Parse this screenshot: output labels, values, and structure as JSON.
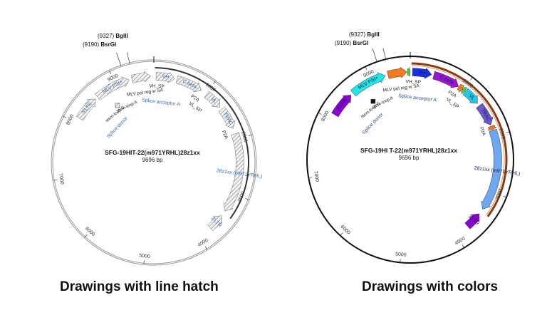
{
  "maps": [
    {
      "id": "hatch",
      "style": "line-hatch",
      "caption": "Drawings with line hatch",
      "title": "SFG-19HIT-22(m971YRHL)28z1xx",
      "size_label": "9696 bp",
      "total_bp": 9696,
      "ring_color": "#9a9a9a",
      "inner_track_color": "#333333",
      "sites": [
        {
          "pos": "(9327)",
          "name": "BglII"
        },
        {
          "pos": "(9190)",
          "name": "BsrGI"
        }
      ],
      "ticks": [
        "1000",
        "2000",
        "3000",
        "4000",
        "5000",
        "6000",
        "7000",
        "8000",
        "9000"
      ],
      "features": [
        {
          "label": "5'LTR",
          "start": 8100,
          "end": 8550
        },
        {
          "label": "MLV PSI+",
          "start": 8600,
          "end": 9250
        },
        {
          "label": "",
          "start": 9300,
          "end": 9640
        },
        {
          "label": "VH",
          "start": 40,
          "end": 380
        },
        {
          "label": "C beta",
          "start": 420,
          "end": 900
        },
        {
          "label": "VL",
          "start": 1020,
          "end": 1350
        },
        {
          "label": "TRAC",
          "start": 1400,
          "end": 1800
        },
        {
          "label": "28z1xx (m971YRHL)",
          "start": 1900,
          "end": 3350
        },
        {
          "label": "3'LTR",
          "start": 3750,
          "end": 3450
        }
      ],
      "annotations": [
        "VH_SP",
        "MLV pol reg w SA",
        "Splice acceptor A",
        "stem-loop A",
        "stem-loop C",
        "Splice donor",
        "P2A",
        "VL_SP",
        "P2A"
      ]
    },
    {
      "id": "color",
      "style": "colors",
      "caption": "Drawings with colors",
      "title": "SFG-19HI T-22(m971YRHL)28z1xx",
      "size_label": "9696 bp",
      "total_bp": 9696,
      "ring_color": "#111111",
      "inner_track_color": "#8b3a0f",
      "sites": [
        {
          "pos": "(9327)",
          "name": "BglII"
        },
        {
          "pos": "(9190)",
          "name": "BsrGI"
        }
      ],
      "ticks": [
        "1000",
        "2000",
        "3000",
        "4000",
        "5000",
        "6000",
        "7000",
        "8000",
        "9000"
      ],
      "features": [
        {
          "label": "5'LTR",
          "start": 8100,
          "end": 8550,
          "color": "#8a00d4"
        },
        {
          "label": "MLV PSI+",
          "start": 8600,
          "end": 9250,
          "color": "#22e5e5"
        },
        {
          "label": "",
          "start": 9300,
          "end": 9640,
          "color": "#f47a1f"
        },
        {
          "label": "",
          "start": 9650,
          "end": 9696,
          "color": "#33dd33"
        },
        {
          "label": "VH",
          "start": 40,
          "end": 380,
          "color": "#1a2fe0"
        },
        {
          "label": "C beta",
          "start": 420,
          "end": 900,
          "color": "#9a14d6"
        },
        {
          "label": "",
          "start": 910,
          "end": 990,
          "color": "#f47a1f"
        },
        {
          "label": "",
          "start": 995,
          "end": 1040,
          "color": "#33dd33"
        },
        {
          "label": "VL",
          "start": 1050,
          "end": 1350,
          "color": "#22c8e5"
        },
        {
          "label": "TRAC",
          "start": 1400,
          "end": 1800,
          "color": "#6a5acd"
        },
        {
          "label": "",
          "start": 1820,
          "end": 1890,
          "color": "#f47a1f"
        },
        {
          "label": "28z1xx (m971YRHL)",
          "start": 1900,
          "end": 3350,
          "color": "#6fa8f0"
        },
        {
          "label": "3'LTR",
          "start": 3750,
          "end": 3450,
          "color": "#8a00d4"
        }
      ],
      "annotations": [
        "VH_SP",
        "MLV pol reg w SA",
        "Splice acceptor A",
        "stem-loop A",
        "stem-loop C",
        "Splice donor",
        "P2A",
        "VL_SP",
        "P2A"
      ]
    }
  ]
}
